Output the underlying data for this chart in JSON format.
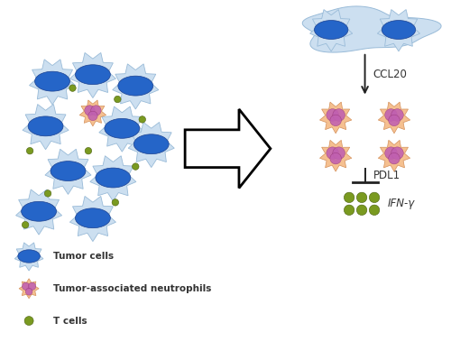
{
  "bg_color": "#ffffff",
  "tumor_body_color": "#ccdff0",
  "tumor_nucleus_color": "#2565c8",
  "neutrophil_body_color": "#f5c090",
  "neutrophil_nucleus_color": "#c060b0",
  "tcell_color": "#7a9a20",
  "tcell_edge": "#4a6010",
  "arrow_color": "#222222",
  "label_ccl20": "CCL20",
  "label_pdl1": "PDL1",
  "label_ifng": "IFN-γ",
  "legend_tumor": "Tumor cells",
  "legend_neutrophil": "Tumor-associated neutrophils",
  "legend_tcell": "T cells",
  "fig_width": 5.0,
  "fig_height": 3.99,
  "dpi": 100
}
